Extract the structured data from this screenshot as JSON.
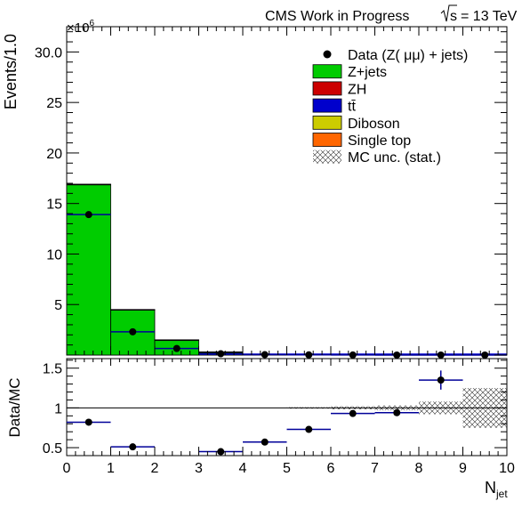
{
  "header": {
    "title": "CMS Work in Progress",
    "energy_sqrt": "s",
    "energy_value": "= 13 TeV"
  },
  "chart_data": [
    {
      "type": "bar",
      "panel": "main",
      "xlabel_main": "N",
      "xlabel_sub": "jet",
      "ylabel": "Events/1.0",
      "y_exponent_label": "×10",
      "y_exponent_power": "6",
      "xlim": [
        0,
        10
      ],
      "ylim": [
        0,
        32.5
      ],
      "x_ticks": [
        "0",
        "1",
        "2",
        "3",
        "4",
        "5",
        "6",
        "7",
        "8",
        "9",
        "10"
      ],
      "y_ticks": [
        "5",
        "10",
        "15",
        "20",
        "25",
        "30.0"
      ],
      "bin_edges": [
        0,
        1,
        2,
        3,
        4,
        5,
        6,
        7,
        8,
        9,
        10
      ],
      "stack": [
        {
          "name": "Z+jets",
          "color": "#00cc00",
          "values": [
            16.9,
            4.5,
            1.5,
            0.3,
            0.08,
            0.03,
            0.01,
            0.005,
            0.002,
            0.001
          ]
        },
        {
          "name": "ZH",
          "color": "#cc0000",
          "values": [
            0,
            0,
            0,
            0,
            0,
            0,
            0,
            0,
            0,
            0
          ]
        },
        {
          "name": "tt̄",
          "color": "#0000cc",
          "values": [
            0.01,
            0.01,
            0.01,
            0.01,
            0.005,
            0.003,
            0.001,
            0.001,
            0,
            0
          ]
        },
        {
          "name": "Diboson",
          "color": "#cccc00",
          "values": [
            0,
            0,
            0,
            0,
            0,
            0,
            0,
            0,
            0,
            0
          ]
        },
        {
          "name": "Single top",
          "color": "#ff6600",
          "values": [
            0,
            0,
            0,
            0,
            0,
            0,
            0,
            0,
            0,
            0
          ]
        }
      ],
      "data_series": {
        "name": "Data (Z( μμ) + jets)",
        "x": [
          0.5,
          1.5,
          2.5,
          3.5,
          4.5,
          5.5,
          6.5,
          7.5,
          8.5,
          9.5
        ],
        "y": [
          13.9,
          2.3,
          0.65,
          0.13,
          0.04,
          0.02,
          0.008,
          0.004,
          0.002,
          0.001
        ]
      },
      "legend": {
        "placement": "top-right",
        "entries": [
          {
            "label": "Data (Z( μμ) + jets)",
            "style": "marker"
          },
          {
            "label": "Z+jets",
            "style": "box",
            "color": "#00cc00"
          },
          {
            "label": "ZH",
            "style": "box",
            "color": "#cc0000"
          },
          {
            "label": "tt̄",
            "style": "box",
            "color": "#0000cc"
          },
          {
            "label": "Diboson",
            "style": "box",
            "color": "#cccc00"
          },
          {
            "label": "Single top",
            "style": "box",
            "color": "#ff6600"
          },
          {
            "label": "MC unc. (stat.)",
            "style": "hatch"
          }
        ]
      }
    },
    {
      "type": "scatter",
      "panel": "ratio",
      "ylabel": "Data/MC",
      "xlabel_main": "N",
      "xlabel_sub": "jet",
      "xlim": [
        0,
        10
      ],
      "ylim": [
        0.4,
        1.62
      ],
      "reference_line": 1.0,
      "x_ticks": [
        "0",
        "1",
        "2",
        "3",
        "4",
        "5",
        "6",
        "7",
        "8",
        "9",
        "10"
      ],
      "y_ticks": [
        "0.5",
        "1",
        "1.5"
      ],
      "points": {
        "x": [
          0.5,
          1.5,
          3.5,
          4.5,
          5.5,
          6.5,
          7.5,
          8.5
        ],
        "y": [
          0.82,
          0.51,
          0.45,
          0.57,
          0.73,
          0.93,
          0.94,
          1.35
        ],
        "xerr": [
          0.5,
          0.5,
          0.5,
          0.5,
          0.5,
          0.5,
          0.5,
          0.5
        ],
        "yerr": [
          0,
          0,
          0,
          0,
          0,
          0.01,
          0.02,
          0.12
        ]
      },
      "mc_unc_band": {
        "bins": [
          [
            5,
            6
          ],
          [
            6,
            7
          ],
          [
            7,
            8
          ],
          [
            8,
            9
          ],
          [
            9,
            10
          ]
        ],
        "half_width": [
          0.01,
          0.02,
          0.03,
          0.08,
          0.25
        ]
      }
    }
  ]
}
